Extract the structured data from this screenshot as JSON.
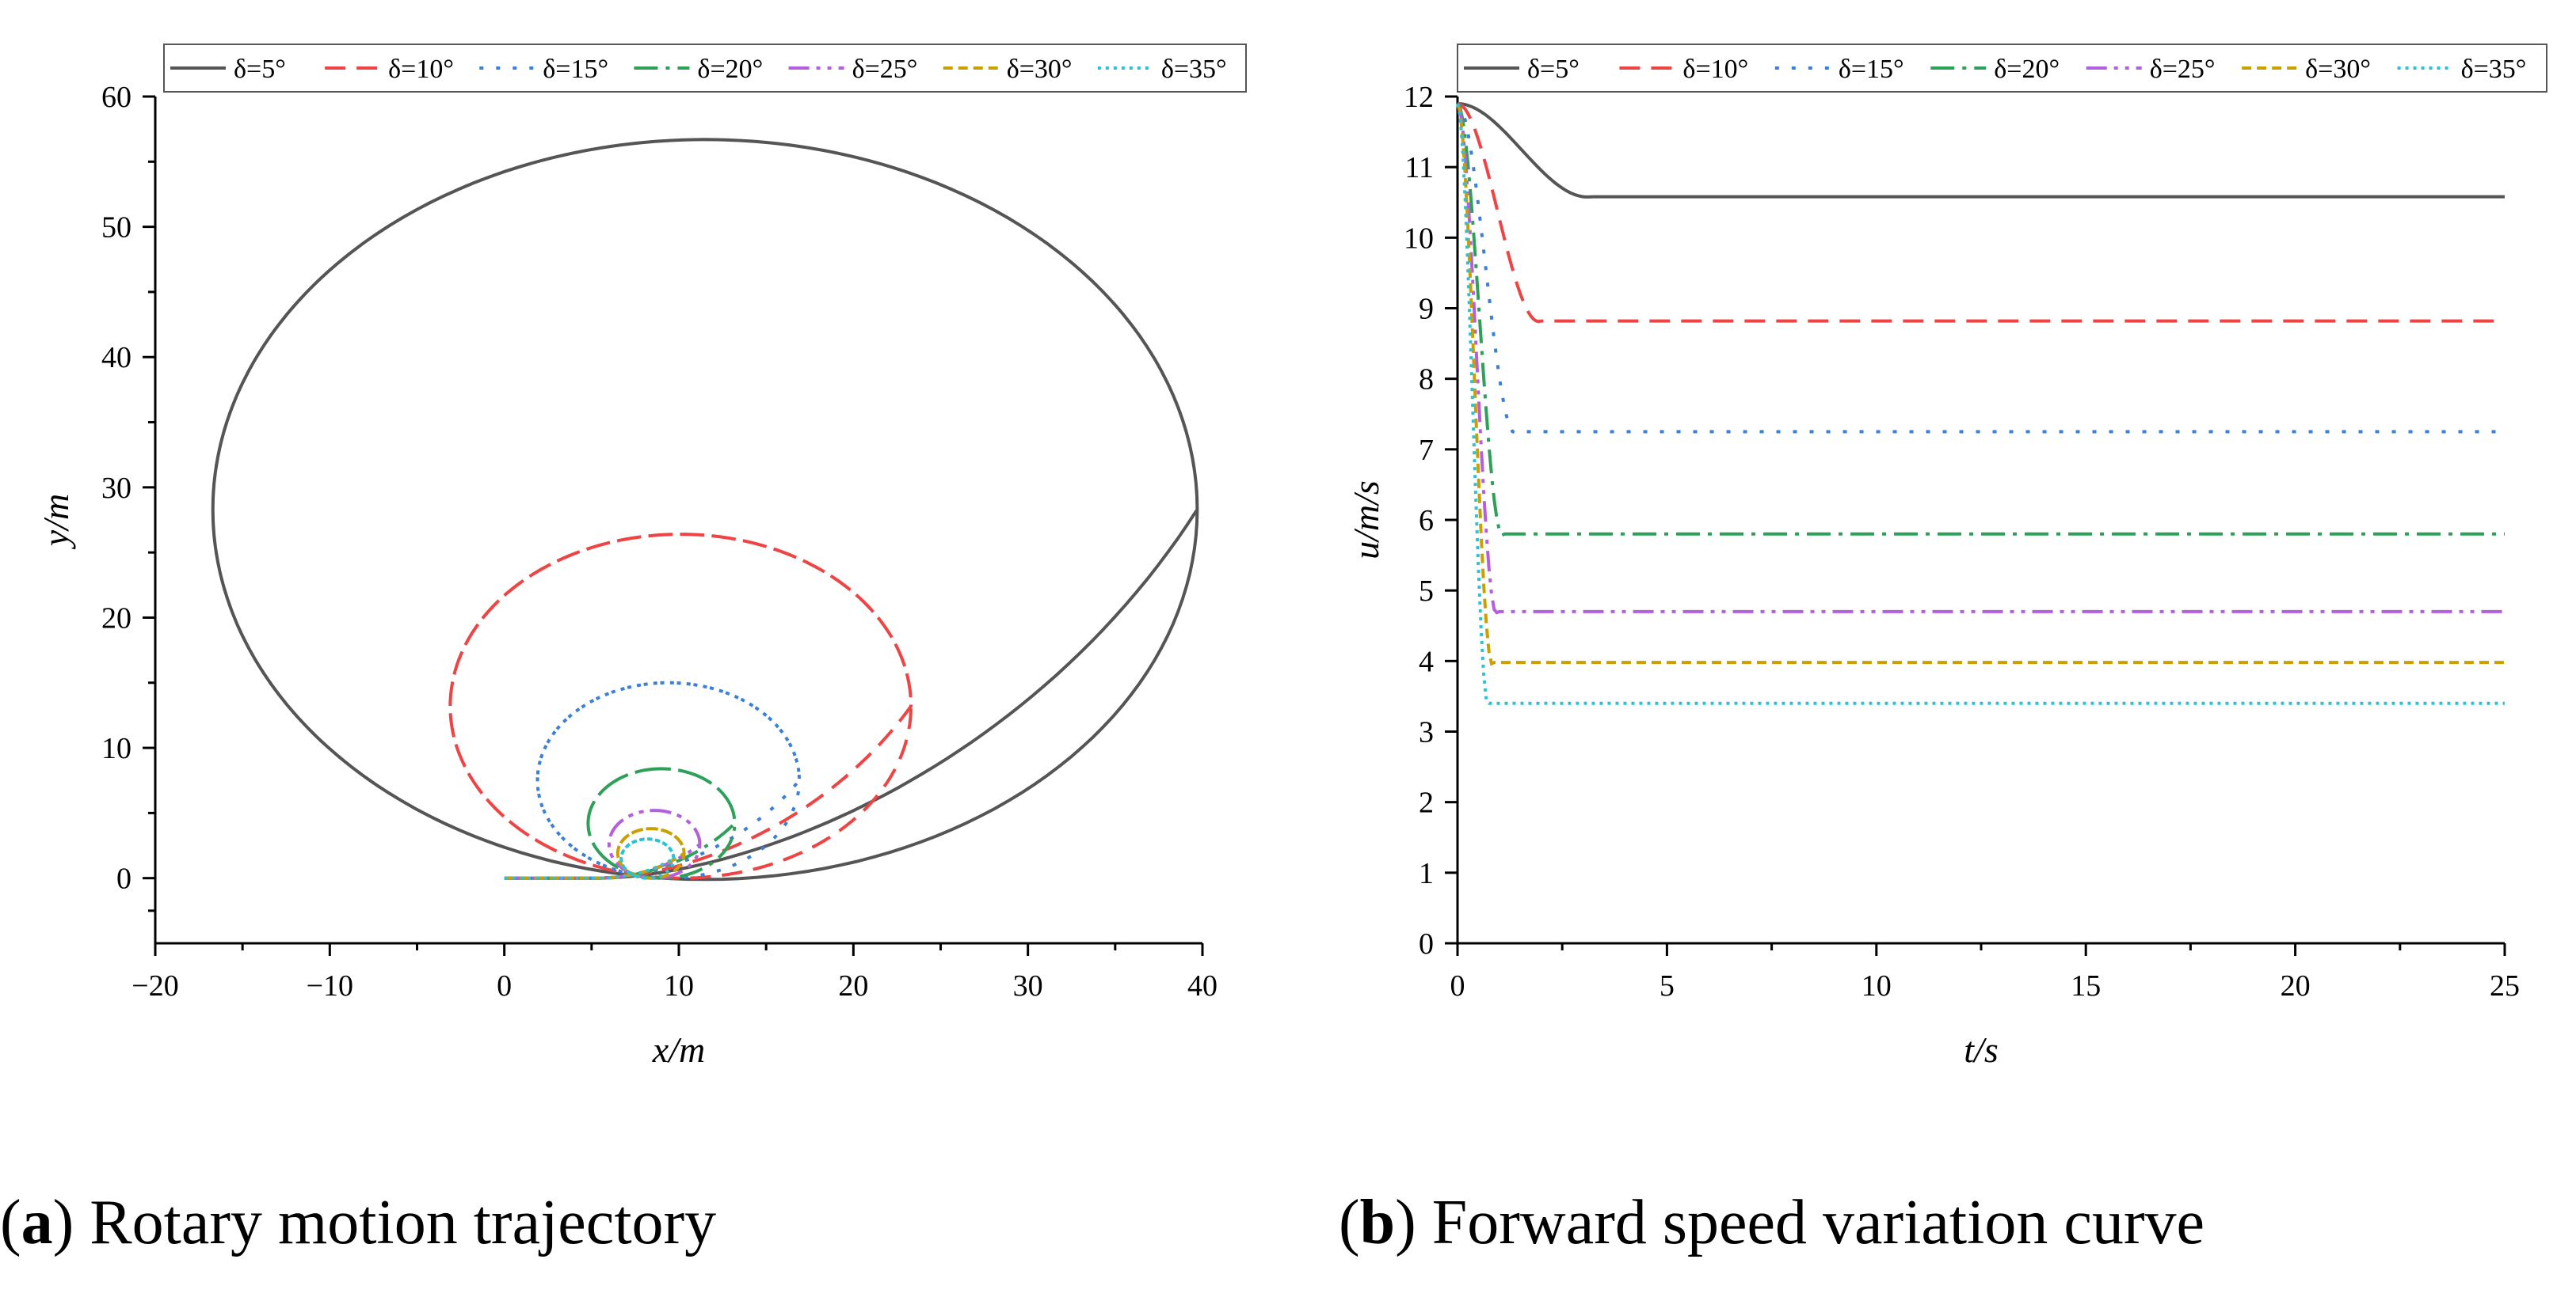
{
  "chart_data": [
    {
      "id": "a",
      "type": "line",
      "title": "",
      "xlabel": "x/m",
      "ylabel": "y/m",
      "xlim": [
        -20,
        40
      ],
      "ylim": [
        -5,
        60
      ],
      "xticks": [
        -20,
        -10,
        0,
        10,
        20,
        30,
        40
      ],
      "yticks": [
        0,
        10,
        20,
        30,
        40,
        50,
        60
      ],
      "xtick_labels": [
        "−20",
        "−10",
        "0",
        "10",
        "20",
        "30",
        "40"
      ],
      "ytick_labels": [
        "0",
        "10",
        "20",
        "30",
        "40",
        "50",
        "60"
      ],
      "legend_position": "top",
      "series": [
        {
          "name": "δ=5°",
          "color": "#555555",
          "dash": "solid",
          "turn_center": [
            11.5,
            28.3
          ],
          "radius_x": 28.2,
          "radius_y": 28.4
        },
        {
          "name": "δ=10°",
          "color": "#ee4444",
          "dash": "dash",
          "turn_center": [
            10.1,
            13.2
          ],
          "radius_x": 13.2,
          "radius_y": 13.2
        },
        {
          "name": "δ=15°",
          "color": "#3a7fd8",
          "dash": "dot",
          "turn_center": [
            9.4,
            7.5
          ],
          "radius_x": 7.5,
          "radius_y": 7.5
        },
        {
          "name": "δ=20°",
          "color": "#2fa05a",
          "dash": "dashdot",
          "turn_center": [
            9.0,
            4.2
          ],
          "radius_x": 4.2,
          "radius_y": 4.2
        },
        {
          "name": "δ=25°",
          "color": "#b45fe0",
          "dash": "dashdotdot",
          "turn_center": [
            8.6,
            2.6
          ],
          "radius_x": 2.6,
          "radius_y": 2.6
        },
        {
          "name": "δ=30°",
          "color": "#c9a000",
          "dash": "shortdash",
          "turn_center": [
            8.4,
            1.9
          ],
          "radius_x": 1.9,
          "radius_y": 1.9
        },
        {
          "name": "δ=35°",
          "color": "#2bc2d6",
          "dash": "shortdot",
          "turn_center": [
            8.2,
            1.5
          ],
          "radius_x": 1.5,
          "radius_y": 1.5
        }
      ]
    },
    {
      "id": "b",
      "type": "line",
      "title": "",
      "xlabel": "t/s",
      "ylabel": "u/m/s",
      "xlim": [
        0,
        25
      ],
      "ylim": [
        0,
        12
      ],
      "xticks": [
        0,
        5,
        10,
        15,
        20,
        25
      ],
      "yticks": [
        0,
        1,
        2,
        3,
        4,
        5,
        6,
        7,
        8,
        9,
        10,
        11,
        12
      ],
      "xtick_labels": [
        "0",
        "5",
        "10",
        "15",
        "20",
        "25"
      ],
      "ytick_labels": [
        "0",
        "1",
        "2",
        "3",
        "4",
        "5",
        "6",
        "7",
        "8",
        "9",
        "10",
        "11",
        "12"
      ],
      "legend_position": "top",
      "initial_speed": 11.9,
      "series": [
        {
          "name": "δ=5°",
          "color": "#555555",
          "dash": "solid",
          "steady_speed": 10.58,
          "settle_time": 3.2
        },
        {
          "name": "δ=10°",
          "color": "#ee4444",
          "dash": "dash",
          "steady_speed": 8.82,
          "settle_time": 2.0
        },
        {
          "name": "δ=15°",
          "color": "#3a7fd8",
          "dash": "dot",
          "steady_speed": 7.25,
          "settle_time": 1.4
        },
        {
          "name": "δ=20°",
          "color": "#2fa05a",
          "dash": "dashdot",
          "steady_speed": 5.8,
          "settle_time": 1.1
        },
        {
          "name": "δ=25°",
          "color": "#b45fe0",
          "dash": "dashdotdot",
          "steady_speed": 4.7,
          "settle_time": 0.95
        },
        {
          "name": "δ=30°",
          "color": "#c9a000",
          "dash": "shortdash",
          "steady_speed": 3.98,
          "settle_time": 0.85
        },
        {
          "name": "δ=35°",
          "color": "#2bc2d6",
          "dash": "shortdot",
          "steady_speed": 3.4,
          "settle_time": 0.75
        }
      ]
    }
  ],
  "captions": {
    "a": {
      "letter": "a",
      "text": " Rotary motion trajectory"
    },
    "b": {
      "letter": "b",
      "text": " Forward speed variation curve"
    }
  }
}
